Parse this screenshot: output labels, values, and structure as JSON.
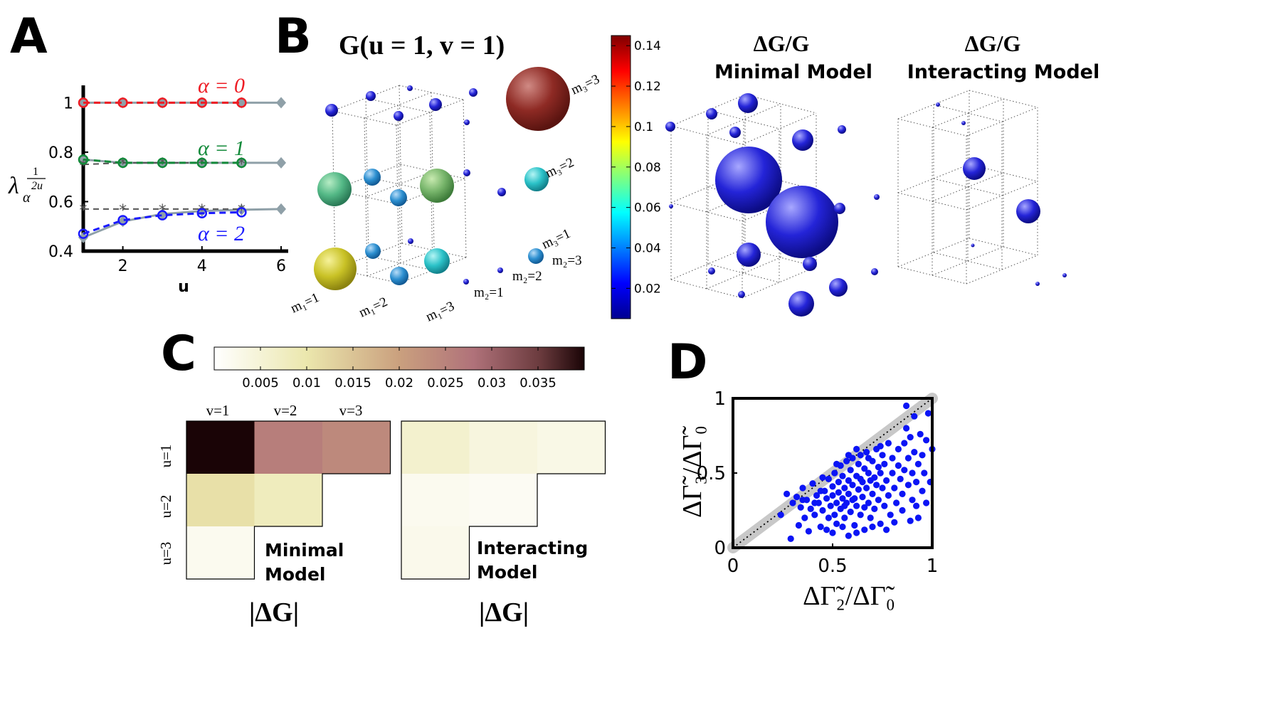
{
  "colors": {
    "red": "#ee1c24",
    "green": "#138a3a",
    "blue": "#1a1aff",
    "grayline": "#8fa0a8",
    "star": "#555555",
    "scatter": "#0b14f5"
  },
  "panels": {
    "A": "A",
    "B": "B",
    "C": "C",
    "D": "D"
  },
  "panelA": {
    "chart_data": {
      "type": "line",
      "xlabel": "u",
      "ylabel_base": "λ",
      "ylabel_sub": "α",
      "ylabel_sup_num": "1",
      "ylabel_sup_den": "2u",
      "xlim": [
        1,
        6
      ],
      "ylim": [
        0.4,
        1.07
      ],
      "xticks": [
        "2",
        "4",
        "6"
      ],
      "yticks": [
        "0.4",
        "0.6",
        "0.8",
        "1"
      ],
      "legend": [
        "α = 0",
        "α = 1",
        "α = 2"
      ],
      "series": [
        {
          "name": "α = 0",
          "x": [
            1,
            2,
            3,
            4,
            5
          ],
          "values": [
            1.0,
            1.0,
            1.0,
            1.0,
            1.0
          ]
        },
        {
          "name": "α = 1",
          "x": [
            1,
            2,
            3,
            4,
            5
          ],
          "values": [
            0.77,
            0.757,
            0.757,
            0.757,
            0.757
          ]
        },
        {
          "name": "α = 2",
          "x": [
            1,
            2,
            3,
            4,
            5
          ],
          "values": [
            0.47,
            0.525,
            0.545,
            0.553,
            0.557
          ]
        },
        {
          "name": "asymptote α = 1",
          "x": [
            1,
            2,
            3,
            4,
            5
          ],
          "values": [
            0.75,
            0.757,
            0.757,
            0.757,
            0.757
          ]
        },
        {
          "name": "asymptote α = 2",
          "x": [
            1,
            2,
            3,
            4,
            5
          ],
          "values": [
            0.57,
            0.57,
            0.57,
            0.57,
            0.57
          ]
        },
        {
          "name": "gray α = 0",
          "x": [
            1,
            2,
            3,
            4,
            5,
            6
          ],
          "values": [
            1.0,
            1.0,
            1.0,
            1.0,
            1.0,
            1.0
          ]
        },
        {
          "name": "gray α = 1",
          "x": [
            1,
            2,
            3,
            4,
            5,
            6
          ],
          "values": [
            0.77,
            0.757,
            0.757,
            0.757,
            0.757,
            0.757
          ]
        },
        {
          "name": "gray α = 2",
          "x": [
            1,
            2,
            3,
            4,
            5,
            6
          ],
          "values": [
            0.455,
            0.52,
            0.55,
            0.562,
            0.567,
            0.57
          ]
        }
      ]
    }
  },
  "panelB": {
    "title1": "G(u = 1, v = 1)",
    "title2_line1": "ΔG/G",
    "title2_line2": "Minimal Model",
    "title3_line1": "ΔG/G",
    "title3_line2": "Interacting Model",
    "axis_labels": {
      "m1_1": "m₁=1",
      "m1_2": "m₁=2",
      "m1_3": "m₁=3",
      "m2_1": "m₂=1",
      "m2_2": "m₂=2",
      "m2_3": "m₂=3",
      "m3_1": "m₃=1",
      "m3_2": "m₃=2",
      "m3_3": "m₃=3"
    },
    "colorbar_ticks": [
      "0.14",
      "0.12",
      "0.1",
      "0.08",
      "0.06",
      "0.04",
      "0.02"
    ],
    "colorbar_range": [
      0.005,
      0.145
    ]
  },
  "panelC": {
    "colorbar_ticks": [
      "0.005",
      "0.01",
      "0.015",
      "0.02",
      "0.025",
      "0.03",
      "0.035"
    ],
    "colorbar_range": [
      0,
      0.04
    ],
    "col_labels": [
      "v=1",
      "v=2",
      "v=3"
    ],
    "row_labels": [
      "u=1",
      "u=2",
      "u=3"
    ],
    "minimal_label_line1": "Minimal",
    "minimal_label_line2": "Model",
    "interacting_label_line1": "Interacting",
    "interacting_label_line2": "Model",
    "bottom_label": "|ΔG|",
    "chart_data": [
      {
        "type": "heatmap",
        "title": "Minimal Model",
        "rows": [
          "u=1",
          "u=2",
          "u=3"
        ],
        "cols": [
          "v=1",
          "v=2",
          "v=3"
        ],
        "values": [
          [
            0.04,
            0.026,
            0.024
          ],
          [
            0.011,
            0.008,
            null
          ],
          [
            0.002,
            null,
            null
          ]
        ]
      },
      {
        "type": "heatmap",
        "title": "Interacting Model",
        "rows": [
          "u=1",
          "u=2",
          "u=3"
        ],
        "cols": [
          "v=1",
          "v=2",
          "v=3"
        ],
        "values": [
          [
            0.006,
            0.004,
            0.003
          ],
          [
            0.002,
            0.0015,
            null
          ],
          [
            0.0025,
            null,
            null
          ]
        ]
      }
    ]
  },
  "panelD": {
    "chart_data": {
      "type": "scatter",
      "xlabel": "ΔΓ̃₂/ΔΓ̃₀",
      "ylabel": "ΔΓ̃₃/ΔΓ̃₀",
      "xlim": [
        0,
        1
      ],
      "ylim": [
        0,
        1
      ],
      "xticks": [
        "0",
        "0.5",
        "1"
      ],
      "yticks": [
        "0",
        "0.5",
        "1"
      ],
      "diagonal": true,
      "points": [
        [
          0.24,
          0.22
        ],
        [
          0.27,
          0.36
        ],
        [
          0.29,
          0.06
        ],
        [
          0.3,
          0.3
        ],
        [
          0.32,
          0.34
        ],
        [
          0.33,
          0.15
        ],
        [
          0.34,
          0.27
        ],
        [
          0.35,
          0.4
        ],
        [
          0.36,
          0.2
        ],
        [
          0.37,
          0.32
        ],
        [
          0.38,
          0.11
        ],
        [
          0.39,
          0.26
        ],
        [
          0.4,
          0.43
        ],
        [
          0.41,
          0.22
        ],
        [
          0.42,
          0.35
        ],
        [
          0.43,
          0.3
        ],
        [
          0.44,
          0.14
        ],
        [
          0.45,
          0.47
        ],
        [
          0.45,
          0.25
        ],
        [
          0.46,
          0.38
        ],
        [
          0.47,
          0.33
        ],
        [
          0.48,
          0.2
        ],
        [
          0.48,
          0.46
        ],
        [
          0.49,
          0.28
        ],
        [
          0.5,
          0.41
        ],
        [
          0.5,
          0.35
        ],
        [
          0.51,
          0.22
        ],
        [
          0.51,
          0.5
        ],
        [
          0.52,
          0.3
        ],
        [
          0.52,
          0.16
        ],
        [
          0.53,
          0.44
        ],
        [
          0.53,
          0.37
        ],
        [
          0.54,
          0.26
        ],
        [
          0.54,
          0.55
        ],
        [
          0.55,
          0.33
        ],
        [
          0.55,
          0.48
        ],
        [
          0.56,
          0.4
        ],
        [
          0.56,
          0.2
        ],
        [
          0.57,
          0.3
        ],
        [
          0.57,
          0.58
        ],
        [
          0.58,
          0.45
        ],
        [
          0.58,
          0.36
        ],
        [
          0.59,
          0.24
        ],
        [
          0.59,
          0.52
        ],
        [
          0.6,
          0.42
        ],
        [
          0.6,
          0.6
        ],
        [
          0.61,
          0.33
        ],
        [
          0.61,
          0.15
        ],
        [
          0.62,
          0.48
        ],
        [
          0.62,
          0.28
        ],
        [
          0.63,
          0.56
        ],
        [
          0.63,
          0.39
        ],
        [
          0.64,
          0.62
        ],
        [
          0.64,
          0.22
        ],
        [
          0.65,
          0.44
        ],
        [
          0.65,
          0.34
        ],
        [
          0.66,
          0.53
        ],
        [
          0.66,
          0.12
        ],
        [
          0.67,
          0.4
        ],
        [
          0.67,
          0.64
        ],
        [
          0.68,
          0.3
        ],
        [
          0.68,
          0.5
        ],
        [
          0.69,
          0.45
        ],
        [
          0.69,
          0.2
        ],
        [
          0.7,
          0.58
        ],
        [
          0.7,
          0.36
        ],
        [
          0.71,
          0.47
        ],
        [
          0.71,
          0.26
        ],
        [
          0.72,
          0.66
        ],
        [
          0.72,
          0.42
        ],
        [
          0.73,
          0.54
        ],
        [
          0.73,
          0.32
        ],
        [
          0.74,
          0.16
        ],
        [
          0.74,
          0.5
        ],
        [
          0.75,
          0.4
        ],
        [
          0.75,
          0.62
        ],
        [
          0.76,
          0.28
        ],
        [
          0.76,
          0.56
        ],
        [
          0.77,
          0.45
        ],
        [
          0.78,
          0.35
        ],
        [
          0.78,
          0.7
        ],
        [
          0.79,
          0.22
        ],
        [
          0.8,
          0.5
        ],
        [
          0.8,
          0.6
        ],
        [
          0.81,
          0.4
        ],
        [
          0.82,
          0.3
        ],
        [
          0.83,
          0.55
        ],
        [
          0.83,
          0.66
        ],
        [
          0.84,
          0.46
        ],
        [
          0.85,
          0.36
        ],
        [
          0.85,
          0.25
        ],
        [
          0.86,
          0.7
        ],
        [
          0.86,
          0.52
        ],
        [
          0.87,
          0.95
        ],
        [
          0.87,
          0.8
        ],
        [
          0.88,
          0.42
        ],
        [
          0.88,
          0.6
        ],
        [
          0.89,
          0.74
        ],
        [
          0.9,
          0.5
        ],
        [
          0.9,
          0.32
        ],
        [
          0.91,
          0.88
        ],
        [
          0.91,
          0.64
        ],
        [
          0.92,
          0.44
        ],
        [
          0.93,
          0.56
        ],
        [
          0.93,
          0.2
        ],
        [
          0.94,
          0.76
        ],
        [
          0.95,
          0.62
        ],
        [
          0.95,
          0.38
        ],
        [
          0.96,
          0.5
        ],
        [
          0.97,
          0.72
        ],
        [
          0.97,
          0.3
        ],
        [
          0.98,
          0.9
        ],
        [
          0.99,
          0.44
        ],
        [
          1.0,
          0.66
        ],
        [
          0.5,
          0.1
        ],
        [
          0.58,
          0.08
        ],
        [
          0.66,
          0.27
        ],
        [
          0.44,
          0.38
        ],
        [
          0.47,
          0.12
        ],
        [
          0.62,
          0.1
        ],
        [
          0.7,
          0.14
        ],
        [
          0.77,
          0.12
        ],
        [
          0.81,
          0.17
        ],
        [
          0.89,
          0.18
        ],
        [
          0.92,
          0.28
        ],
        [
          0.55,
          0.14
        ],
        [
          0.35,
          0.32
        ],
        [
          0.41,
          0.3
        ],
        [
          0.56,
          0.28
        ],
        [
          0.6,
          0.32
        ],
        [
          0.64,
          0.46
        ],
        [
          0.52,
          0.56
        ],
        [
          0.58,
          0.62
        ],
        [
          0.62,
          0.66
        ],
        [
          0.68,
          0.6
        ],
        [
          0.74,
          0.68
        ]
      ]
    }
  }
}
